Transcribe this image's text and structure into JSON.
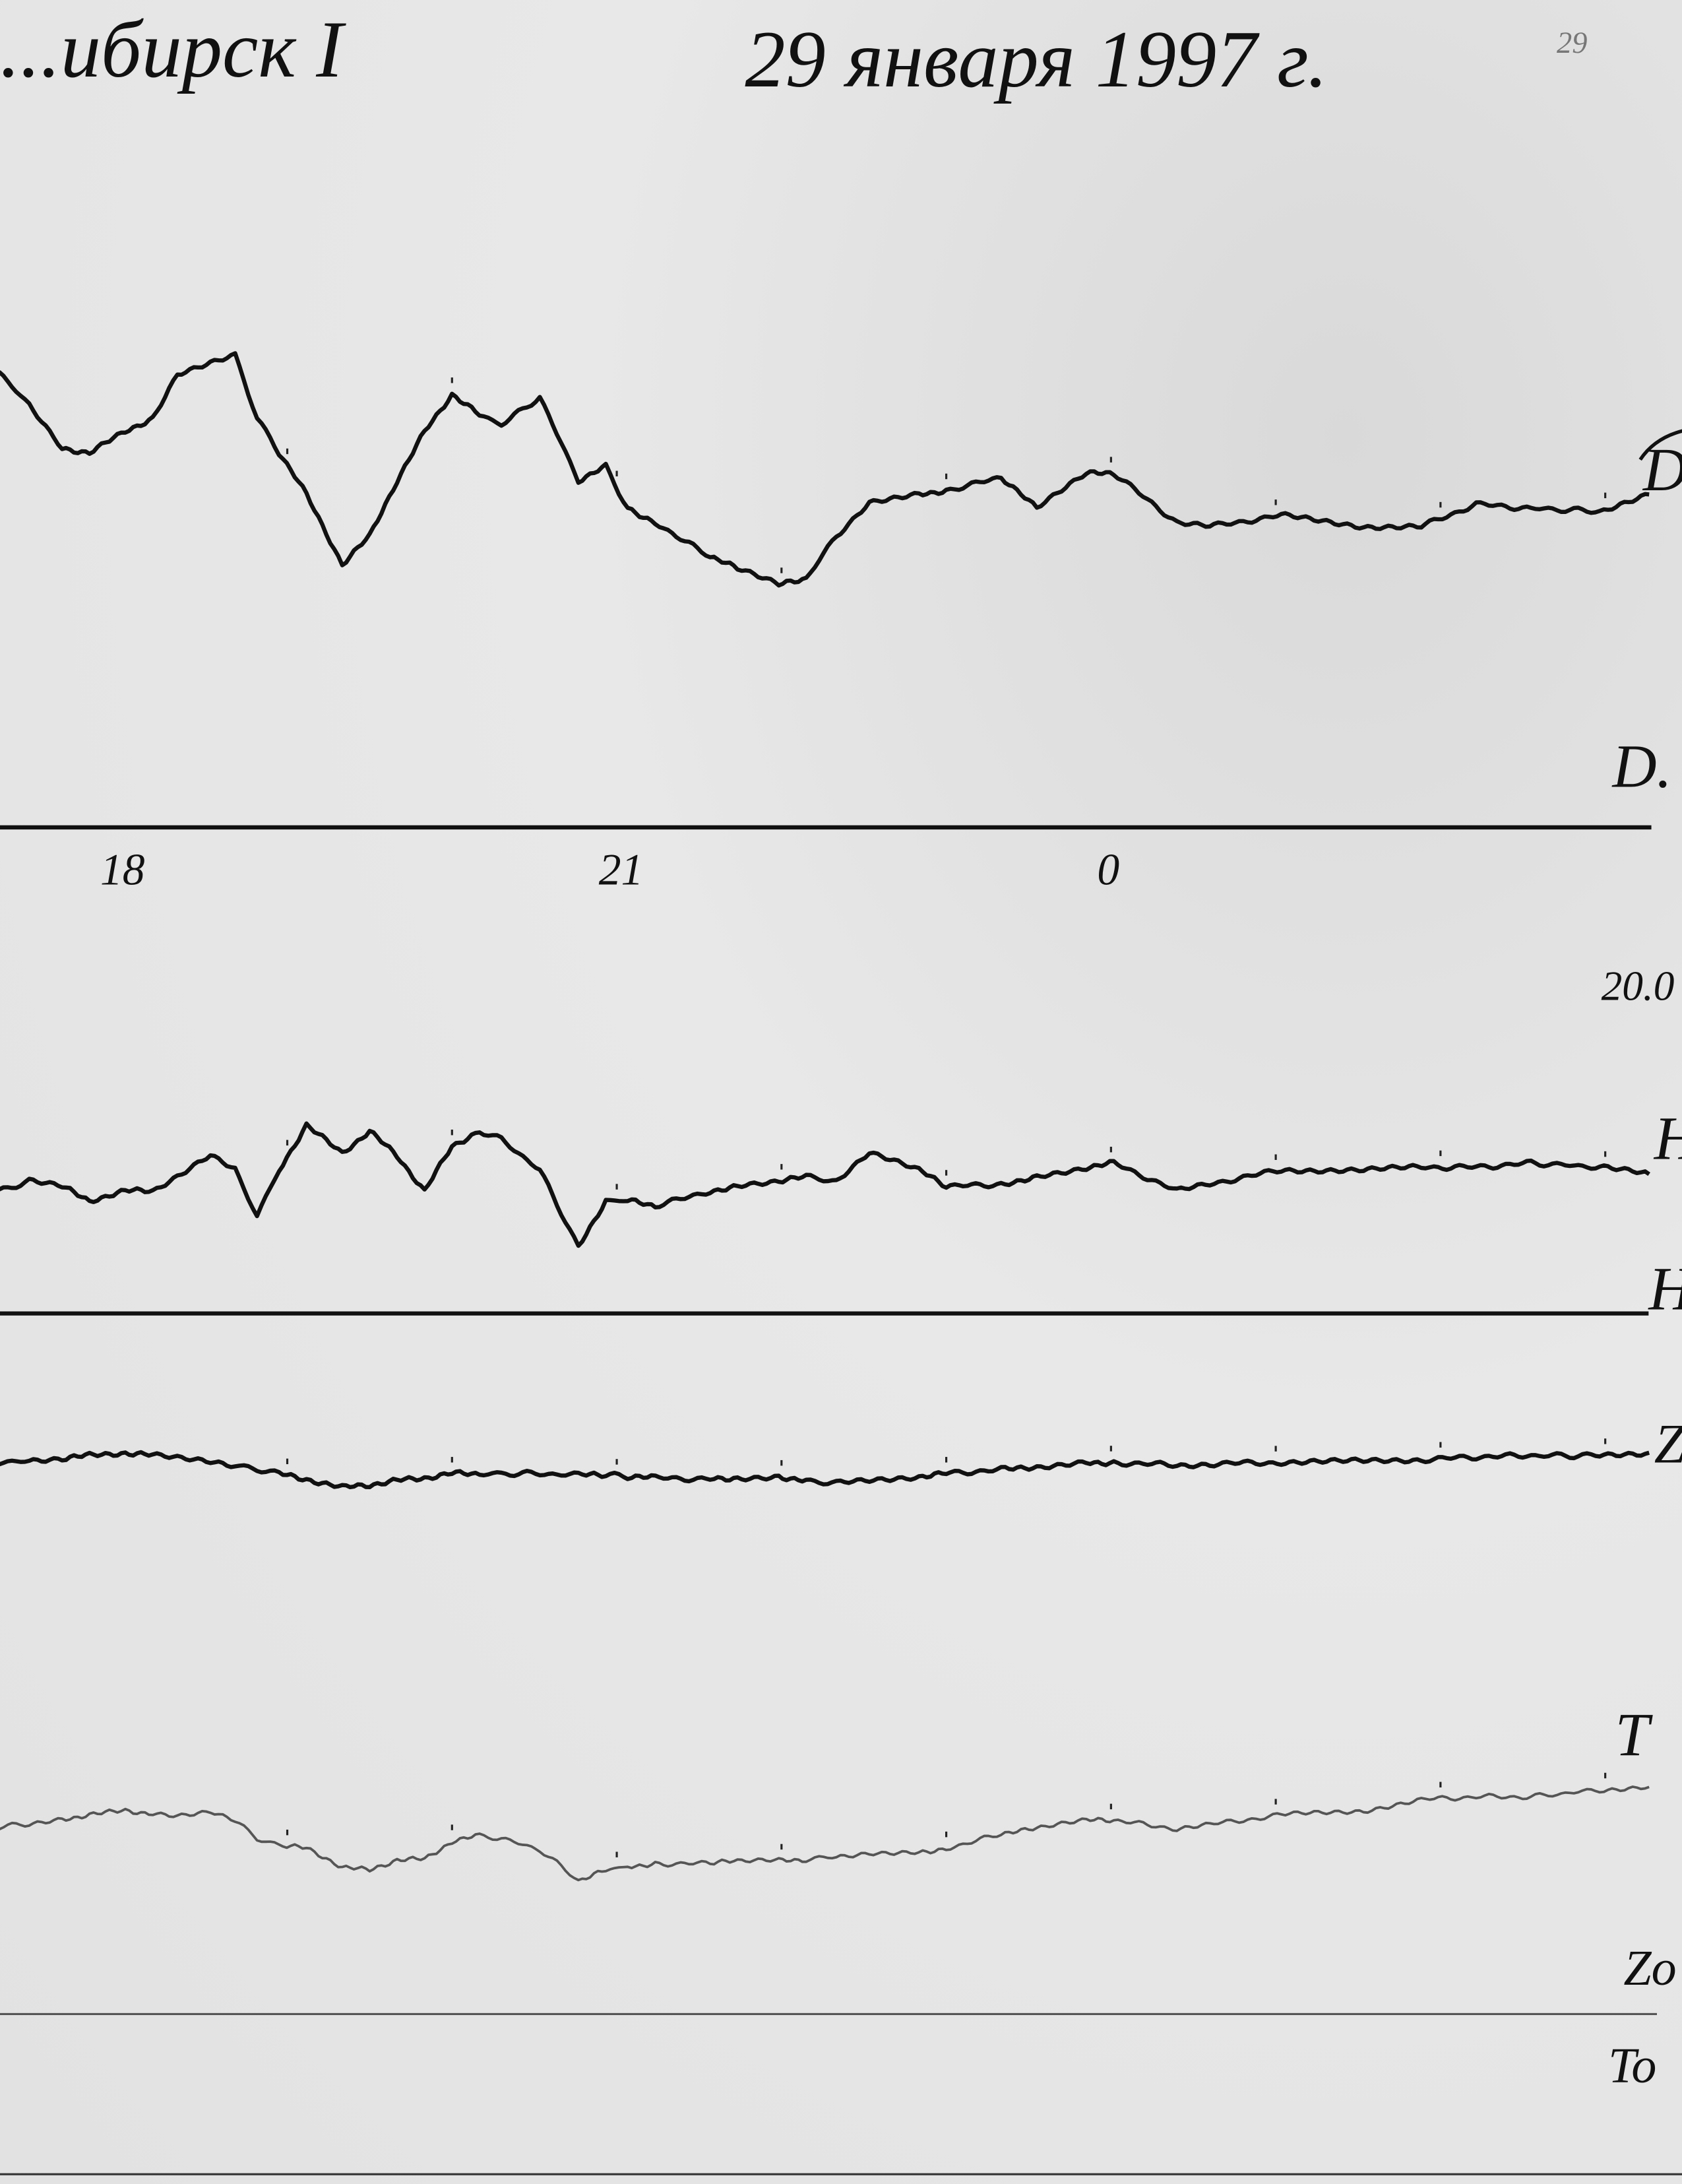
{
  "header": {
    "station": "...ибирск I",
    "date": "29 января 1997 г.",
    "sheet_number": "29"
  },
  "labels": {
    "d_trace": "D",
    "d_base": "D.",
    "scale_value": "20.0",
    "h_trace": "H",
    "h_base": "H",
    "z_trace": "Z",
    "t_trace": "T",
    "z_base": "Zo",
    "t_base": "To"
  },
  "colors": {
    "ink": "#111111",
    "temperature_ink": "#555555",
    "paper": "#e4e4e4"
  },
  "chart_data": {
    "type": "line",
    "title": "",
    "xlabel": "",
    "ylabel": "",
    "x_ticks": [
      "18",
      "21",
      "0"
    ],
    "hour_marks": true,
    "grid": false,
    "x": [
      "17:15",
      "17:26",
      "17:38",
      "17:48",
      "18:01",
      "18:11",
      "18:20",
      "18:32",
      "18:41",
      "18:49",
      "18:57",
      "19:07",
      "19:20",
      "19:30",
      "19:40",
      "19:50",
      "20:00",
      "20:10",
      "20:18",
      "20:32",
      "20:46",
      "20:56",
      "21:04",
      "21:14",
      "21:34",
      "21:44",
      "21:59",
      "22:09",
      "22:20",
      "22:32",
      "22:50",
      "23:00",
      "23:20",
      "23:33",
      "23:51",
      "00:01",
      "00:24",
      "00:36",
      "01:02",
      "01:32",
      "01:53",
      "02:13",
      "02:33",
      "02:58",
      "03:16"
    ],
    "series": [
      {
        "name": "D",
        "baseline": "D.",
        "values": [
          32.6,
          30.4,
          27.2,
          26.9,
          28.4,
          29.4,
          32.6,
          33.4,
          33.9,
          29.4,
          26.9,
          23.9,
          18.9,
          20.9,
          24.9,
          28.4,
          31.1,
          29.6,
          28.9,
          30.9,
          24.9,
          25.9,
          22.9,
          21.9,
          19.4,
          18.6,
          17.4,
          17.9,
          20.9,
          23.4,
          23.9,
          24.2,
          25.1,
          22.9,
          25.4,
          25.4,
          21.9,
          21.6,
          22.4,
          21.6,
          21.6,
          23.2,
          22.9,
          22.7,
          23.9
        ]
      },
      {
        "name": "H",
        "baseline": "H",
        "values": [
          8.8,
          9.5,
          9.1,
          8.1,
          8.8,
          8.8,
          9.8,
          11.3,
          10.3,
          7.0,
          10.3,
          13.5,
          11.5,
          13.1,
          11.3,
          8.8,
          12.0,
          13.1,
          12.5,
          10.3,
          4.8,
          8.1,
          8.1,
          7.7,
          8.8,
          9.1,
          9.5,
          9.8,
          9.5,
          11.5,
          10.3,
          9.1,
          9.3,
          9.8,
          10.5,
          10.8,
          8.8,
          9.3,
          10.3,
          10.3,
          10.5,
          10.5,
          10.8,
          10.5,
          10.0
        ]
      },
      {
        "name": "Z",
        "baseline": "H",
        "values": [
          -10.7,
          -10.6,
          -10.4,
          -10.2,
          -10.0,
          -10.2,
          -10.4,
          -10.6,
          -10.9,
          -11.2,
          -11.5,
          -11.9,
          -12.5,
          -12.3,
          -12.0,
          -11.8,
          -11.5,
          -11.5,
          -11.5,
          -11.5,
          -11.6,
          -11.6,
          -11.7,
          -11.8,
          -11.9,
          -11.8,
          -11.7,
          -12.0,
          -12.2,
          -12.0,
          -11.7,
          -11.5,
          -11.2,
          -11.0,
          -10.7,
          -10.7,
          -10.9,
          -10.8,
          -10.7,
          -10.6,
          -10.5,
          -10.3,
          -10.2,
          -10.2,
          -10.0
        ]
      },
      {
        "name": "T",
        "baseline": "To",
        "values": [
          13.4,
          13.7,
          14.0,
          14.3,
          14.6,
          14.4,
          14.3,
          14.6,
          13.9,
          12.6,
          12.1,
          11.9,
          10.6,
          10.3,
          11.1,
          11.1,
          12.4,
          12.8,
          12.6,
          11.8,
          9.6,
          10.3,
          10.6,
          10.8,
          10.8,
          11.0,
          11.0,
          11.1,
          11.3,
          11.6,
          11.6,
          11.9,
          12.9,
          13.3,
          13.9,
          13.9,
          13.3,
          13.6,
          14.3,
          14.6,
          15.4,
          15.6,
          15.6,
          16.1,
          16.3
        ]
      }
    ]
  }
}
